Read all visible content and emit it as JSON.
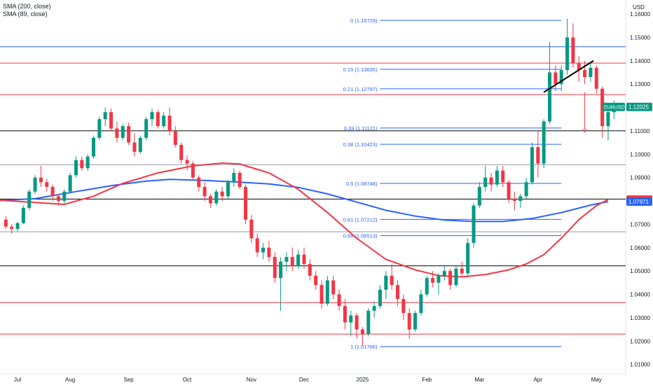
{
  "legend": {
    "sma200": "SMA (200, close)",
    "sma89": "SMA (89, close)"
  },
  "currency_label": "USD",
  "colors": {
    "up": "#089981",
    "down": "#f23645",
    "fib": "#2962ff",
    "sma200": "#2962ff",
    "sma89": "#f23645",
    "red_level": "#f23645",
    "black_level": "#000000",
    "gray_level": "#9598a1",
    "blue_level": "#2962ff"
  },
  "chart_data": {
    "type": "candlestick",
    "symbol": "EURUSD",
    "y_axis": {
      "min": 1.006,
      "max": 1.166,
      "ticks": [
        1.16,
        1.15,
        1.14,
        1.13,
        1.12,
        1.11,
        1.1,
        1.09,
        1.08,
        1.07,
        1.06,
        1.05,
        1.04,
        1.03,
        1.02,
        1.01
      ]
    },
    "x_axis": {
      "labels": [
        {
          "t": 2,
          "label": "Jul"
        },
        {
          "t": 11,
          "label": "Aug"
        },
        {
          "t": 21,
          "label": "Sep"
        },
        {
          "t": 31,
          "label": "Oct"
        },
        {
          "t": 42,
          "label": "Nov"
        },
        {
          "t": 51,
          "label": "Dec"
        },
        {
          "t": 61,
          "label": "2025"
        },
        {
          "t": 72,
          "label": "Feb"
        },
        {
          "t": 81,
          "label": "Mar"
        },
        {
          "t": 91,
          "label": "Apr"
        },
        {
          "t": 101,
          "label": "May"
        }
      ]
    },
    "price_labels": [
      {
        "value": 1.12025,
        "text": "1.12025",
        "tag": "EURUSD",
        "color": "#089981"
      },
      {
        "value": 1.08056,
        "text": "1.08056",
        "color": "#f23645"
      },
      {
        "value": 1.07971,
        "text": "1.07971",
        "color": "#2962ff"
      }
    ],
    "horizontal_levels": [
      {
        "value": 1.1675,
        "color": "#f23645"
      },
      {
        "value": 1.146,
        "color": "#2962ff"
      },
      {
        "value": 1.139,
        "color": "#f23645"
      },
      {
        "value": 1.1255,
        "color": "#f23645"
      },
      {
        "value": 1.11,
        "color": "#000000"
      },
      {
        "value": 1.0955,
        "color": "#9598a1"
      },
      {
        "value": 1.0808,
        "color": "#000000"
      },
      {
        "value": 1.0668,
        "color": "#9598a1"
      },
      {
        "value": 1.0522,
        "color": "#000000"
      },
      {
        "value": 1.0365,
        "color": "#f23645"
      },
      {
        "value": 1.023,
        "color": "#f23645"
      }
    ],
    "fib_levels": [
      {
        "label": "0 (1.15729)",
        "value": 1.15729
      },
      {
        "label": "0.15 (1.13635)",
        "value": 1.13635
      },
      {
        "label": "0.21 (1.12797)",
        "value": 1.12797
      },
      {
        "label": "0.33 (1.11121)",
        "value": 1.11121
      },
      {
        "label": "0.38 (1.10423)",
        "value": 1.10423
      },
      {
        "label": "0.5 (1.08748)",
        "value": 1.08748
      },
      {
        "label": "0.61 (1.07212)",
        "value": 1.07212
      },
      {
        "label": "0.66 (1.06513)",
        "value": 1.06513
      },
      {
        "label": "1 (1.01766)",
        "value": 1.01766
      }
    ],
    "fib_range_t": [
      64,
      95
    ],
    "trendline": {
      "t1": 92,
      "v1": 1.1265,
      "t2": 100.5,
      "v2": 1.14
    },
    "arrow": {
      "t": 99,
      "from": 1.1265,
      "to": 1.1095
    },
    "sma200": [
      [
        -2,
        1.08
      ],
      [
        5,
        1.081
      ],
      [
        12,
        1.084
      ],
      [
        18,
        1.0865
      ],
      [
        24,
        1.0885
      ],
      [
        28,
        1.0892
      ],
      [
        34,
        1.0888
      ],
      [
        40,
        1.088
      ],
      [
        45,
        1.0873
      ],
      [
        50,
        1.0858
      ],
      [
        55,
        1.083
      ],
      [
        60,
        1.0795
      ],
      [
        65,
        1.076
      ],
      [
        70,
        1.0735
      ],
      [
        75,
        1.0718
      ],
      [
        80,
        1.0712
      ],
      [
        85,
        1.0712
      ],
      [
        90,
        1.0725
      ],
      [
        95,
        1.075
      ],
      [
        100,
        1.0782
      ],
      [
        103,
        1.0797
      ]
    ],
    "sma89": [
      [
        -2,
        1.0805
      ],
      [
        4,
        1.0795
      ],
      [
        10,
        1.0785
      ],
      [
        15,
        1.082
      ],
      [
        20,
        1.0875
      ],
      [
        26,
        1.092
      ],
      [
        32,
        1.095
      ],
      [
        37,
        1.0962
      ],
      [
        40,
        1.0958
      ],
      [
        45,
        1.092
      ],
      [
        50,
        1.085
      ],
      [
        55,
        1.075
      ],
      [
        60,
        1.064
      ],
      [
        65,
        1.055
      ],
      [
        70,
        1.0505
      ],
      [
        74,
        1.048
      ],
      [
        78,
        1.0475
      ],
      [
        82,
        1.0485
      ],
      [
        86,
        1.0505
      ],
      [
        89,
        1.053
      ],
      [
        92,
        1.057
      ],
      [
        95,
        1.064
      ],
      [
        98,
        1.072
      ],
      [
        101,
        1.078
      ],
      [
        103,
        1.0806
      ]
    ],
    "candles": [
      [
        1.072,
        1.0735,
        1.068,
        1.069
      ],
      [
        1.069,
        1.07,
        1.066,
        1.068
      ],
      [
        1.068,
        1.071,
        1.067,
        1.0705
      ],
      [
        1.0705,
        1.078,
        1.07,
        1.077
      ],
      [
        1.077,
        1.085,
        1.076,
        1.084
      ],
      [
        1.084,
        1.091,
        1.083,
        1.09
      ],
      [
        1.09,
        1.095,
        1.086,
        1.088
      ],
      [
        1.088,
        1.0895,
        1.084,
        1.086
      ],
      [
        1.086,
        1.087,
        1.08,
        1.082
      ],
      [
        1.082,
        1.083,
        1.078,
        1.08
      ],
      [
        1.08,
        1.085,
        1.079,
        1.084
      ],
      [
        1.084,
        1.092,
        1.083,
        1.091
      ],
      [
        1.091,
        1.099,
        1.09,
        1.0975
      ],
      [
        1.0975,
        1.099,
        1.093,
        1.094
      ],
      [
        1.094,
        1.1,
        1.093,
        1.099
      ],
      [
        1.099,
        1.108,
        1.098,
        1.107
      ],
      [
        1.107,
        1.116,
        1.106,
        1.115
      ],
      [
        1.115,
        1.12,
        1.112,
        1.118
      ],
      [
        1.118,
        1.1195,
        1.11,
        1.111
      ],
      [
        1.111,
        1.114,
        1.105,
        1.107
      ],
      [
        1.107,
        1.113,
        1.106,
        1.112
      ],
      [
        1.112,
        1.1135,
        1.104,
        1.105
      ],
      [
        1.105,
        1.109,
        1.099,
        1.101
      ],
      [
        1.101,
        1.108,
        1.1,
        1.107
      ],
      [
        1.107,
        1.116,
        1.106,
        1.115
      ],
      [
        1.115,
        1.1195,
        1.112,
        1.118
      ],
      [
        1.118,
        1.119,
        1.111,
        1.112
      ],
      [
        1.112,
        1.118,
        1.111,
        1.1165
      ],
      [
        1.1165,
        1.12,
        1.108,
        1.11
      ],
      [
        1.11,
        1.112,
        1.103,
        1.104
      ],
      [
        1.104,
        1.105,
        1.096,
        1.0975
      ],
      [
        1.0975,
        1.0995,
        1.093,
        1.096
      ],
      [
        1.096,
        1.097,
        1.089,
        1.09
      ],
      [
        1.09,
        1.091,
        1.084,
        1.086
      ],
      [
        1.086,
        1.088,
        1.08,
        1.082
      ],
      [
        1.082,
        1.083,
        1.077,
        1.079
      ],
      [
        1.079,
        1.085,
        1.078,
        1.084
      ],
      [
        1.084,
        1.086,
        1.08,
        1.082
      ],
      [
        1.082,
        1.089,
        1.081,
        1.088
      ],
      [
        1.088,
        1.094,
        1.086,
        1.092
      ],
      [
        1.092,
        1.093,
        1.085,
        1.086
      ],
      [
        1.086,
        1.087,
        1.07,
        1.072
      ],
      [
        1.072,
        1.074,
        1.062,
        1.064
      ],
      [
        1.064,
        1.066,
        1.056,
        1.058
      ],
      [
        1.058,
        1.062,
        1.055,
        1.06
      ],
      [
        1.06,
        1.063,
        1.054,
        1.056
      ],
      [
        1.056,
        1.058,
        1.045,
        1.047
      ],
      [
        1.047,
        1.056,
        1.033,
        1.054
      ],
      [
        1.054,
        1.058,
        1.05,
        1.056
      ],
      [
        1.056,
        1.06,
        1.05,
        1.052
      ],
      [
        1.052,
        1.059,
        1.051,
        1.057
      ],
      [
        1.057,
        1.06,
        1.051,
        1.053
      ],
      [
        1.053,
        1.055,
        1.046,
        1.048
      ],
      [
        1.048,
        1.05,
        1.042,
        1.044
      ],
      [
        1.044,
        1.046,
        1.034,
        1.036
      ],
      [
        1.036,
        1.048,
        1.035,
        1.046
      ],
      [
        1.046,
        1.048,
        1.038,
        1.04
      ],
      [
        1.04,
        1.042,
        1.033,
        1.035
      ],
      [
        1.035,
        1.038,
        1.025,
        1.028
      ],
      [
        1.028,
        1.033,
        1.022,
        1.031
      ],
      [
        1.031,
        1.032,
        1.021,
        1.025
      ],
      [
        1.025,
        1.026,
        1.018,
        1.023
      ],
      [
        1.023,
        1.034,
        1.022,
        1.033
      ],
      [
        1.033,
        1.037,
        1.03,
        1.035
      ],
      [
        1.035,
        1.044,
        1.034,
        1.042
      ],
      [
        1.042,
        1.05,
        1.038,
        1.048
      ],
      [
        1.048,
        1.053,
        1.042,
        1.044
      ],
      [
        1.044,
        1.046,
        1.035,
        1.038
      ],
      [
        1.038,
        1.04,
        1.029,
        1.032
      ],
      [
        1.032,
        1.034,
        1.021,
        1.025
      ],
      [
        1.025,
        1.033,
        1.024,
        1.032
      ],
      [
        1.032,
        1.042,
        1.031,
        1.04
      ],
      [
        1.04,
        1.048,
        1.039,
        1.047
      ],
      [
        1.047,
        1.05,
        1.043,
        1.045
      ],
      [
        1.045,
        1.049,
        1.04,
        1.048
      ],
      [
        1.048,
        1.052,
        1.046,
        1.05
      ],
      [
        1.05,
        1.051,
        1.042,
        1.044
      ],
      [
        1.044,
        1.052,
        1.043,
        1.051
      ],
      [
        1.051,
        1.054,
        1.048,
        1.049
      ],
      [
        1.049,
        1.064,
        1.048,
        1.062
      ],
      [
        1.062,
        1.079,
        1.06,
        1.078
      ],
      [
        1.078,
        1.088,
        1.077,
        1.086
      ],
      [
        1.086,
        1.095,
        1.084,
        1.09
      ],
      [
        1.09,
        1.092,
        1.084,
        1.087
      ],
      [
        1.087,
        1.095,
        1.086,
        1.093
      ],
      [
        1.093,
        1.095,
        1.086,
        1.088
      ],
      [
        1.088,
        1.089,
        1.079,
        1.081
      ],
      [
        1.081,
        1.084,
        1.076,
        1.08
      ],
      [
        1.08,
        1.083,
        1.077,
        1.082
      ],
      [
        1.082,
        1.09,
        1.081,
        1.088
      ],
      [
        1.088,
        1.105,
        1.087,
        1.103
      ],
      [
        1.103,
        1.11,
        1.09,
        1.096
      ],
      [
        1.096,
        1.115,
        1.094,
        1.114
      ],
      [
        1.114,
        1.148,
        1.113,
        1.135
      ],
      [
        1.135,
        1.138,
        1.127,
        1.13
      ],
      [
        1.13,
        1.138,
        1.127,
        1.136
      ],
      [
        1.136,
        1.158,
        1.134,
        1.15
      ],
      [
        1.15,
        1.156,
        1.137,
        1.139
      ],
      [
        1.139,
        1.142,
        1.131,
        1.136
      ],
      [
        1.136,
        1.14,
        1.13,
        1.133
      ],
      [
        1.133,
        1.139,
        1.131,
        1.137
      ],
      [
        1.137,
        1.138,
        1.126,
        1.128
      ],
      [
        1.128,
        1.129,
        1.107,
        1.112
      ],
      [
        1.112,
        1.12,
        1.106,
        1.118
      ],
      [
        1.118,
        1.123,
        1.115,
        1.1202
      ]
    ]
  }
}
